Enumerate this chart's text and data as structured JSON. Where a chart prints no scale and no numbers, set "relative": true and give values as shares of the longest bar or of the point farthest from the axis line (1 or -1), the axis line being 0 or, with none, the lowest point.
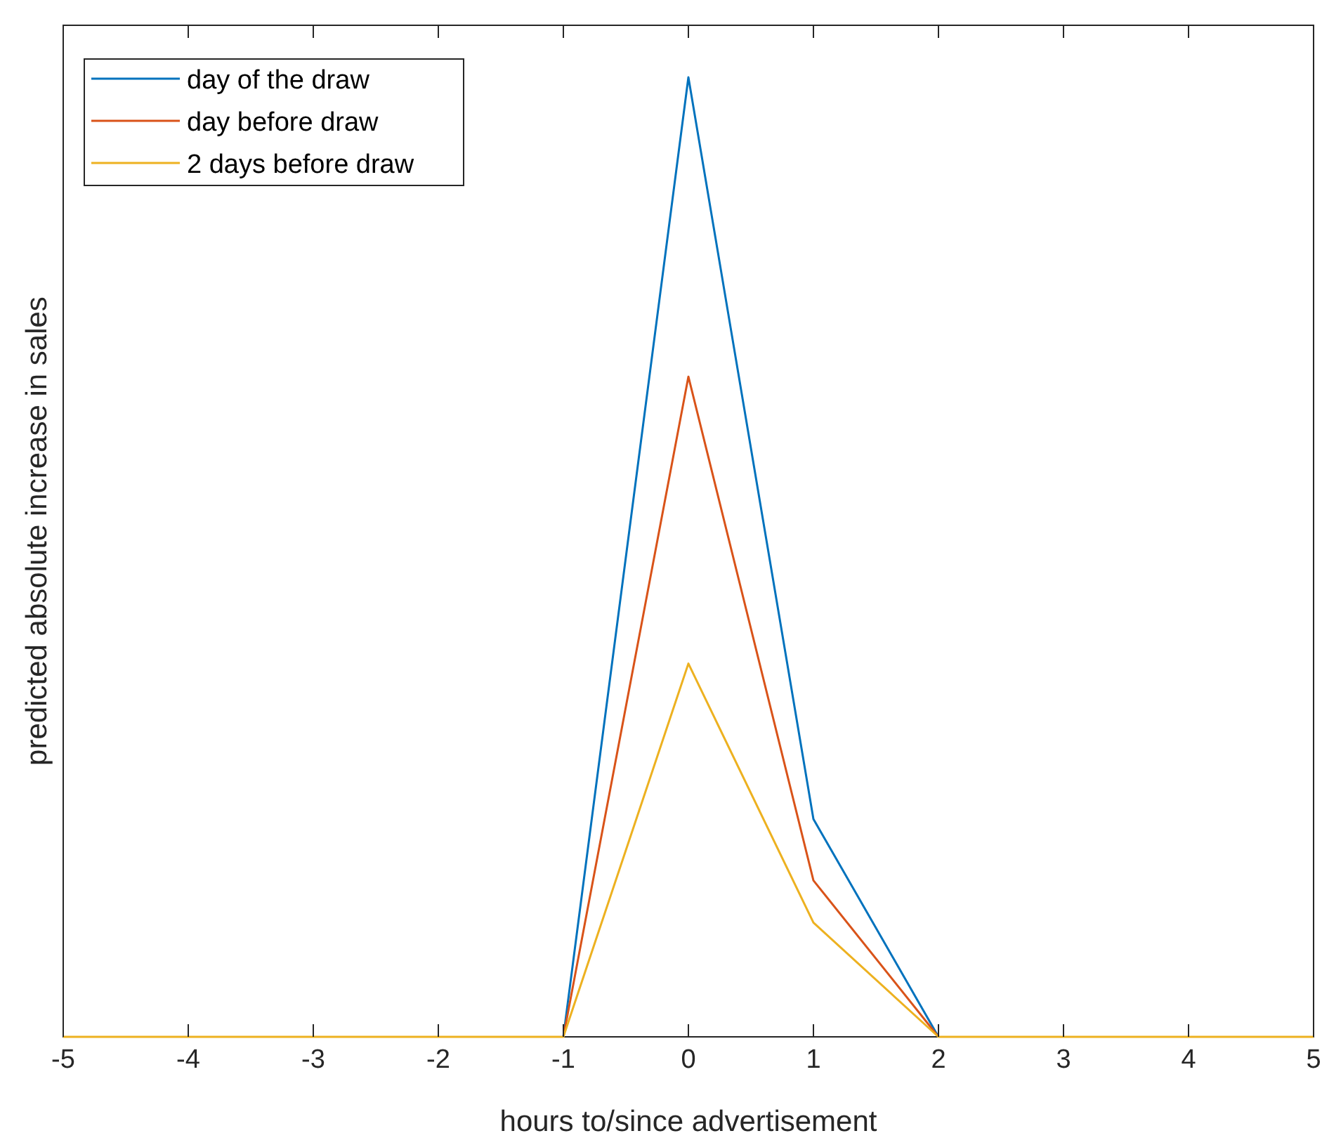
{
  "chart_data": {
    "type": "line",
    "relative": true,
    "xlabel": "hours to/since advertisement",
    "ylabel": "predicted absolute increase in sales",
    "x": [
      -5,
      -4,
      -3,
      -2,
      -1,
      0,
      1,
      2,
      3,
      4,
      5
    ],
    "xlim": [
      -5,
      5
    ],
    "xticks": [
      -5,
      -4,
      -3,
      -2,
      -1,
      0,
      1,
      2,
      3,
      4,
      5
    ],
    "legend": "top left",
    "grid": false,
    "marker": "none",
    "line_style": "solid",
    "series": [
      {
        "name": "day of the draw",
        "color": "#0072bd",
        "values": [
          null,
          null,
          null,
          null,
          0,
          1,
          0.227,
          0,
          null,
          null,
          null
        ]
      },
      {
        "name": "day before draw",
        "color": "#d95319",
        "values": [
          null,
          null,
          null,
          null,
          0,
          0.688,
          0.163,
          0,
          null,
          null,
          null
        ]
      },
      {
        "name": "2 days before draw",
        "color": "#edb120",
        "values": [
          0,
          0,
          0,
          0,
          0,
          0.389,
          0.119,
          0,
          0,
          0,
          0
        ]
      }
    ]
  }
}
